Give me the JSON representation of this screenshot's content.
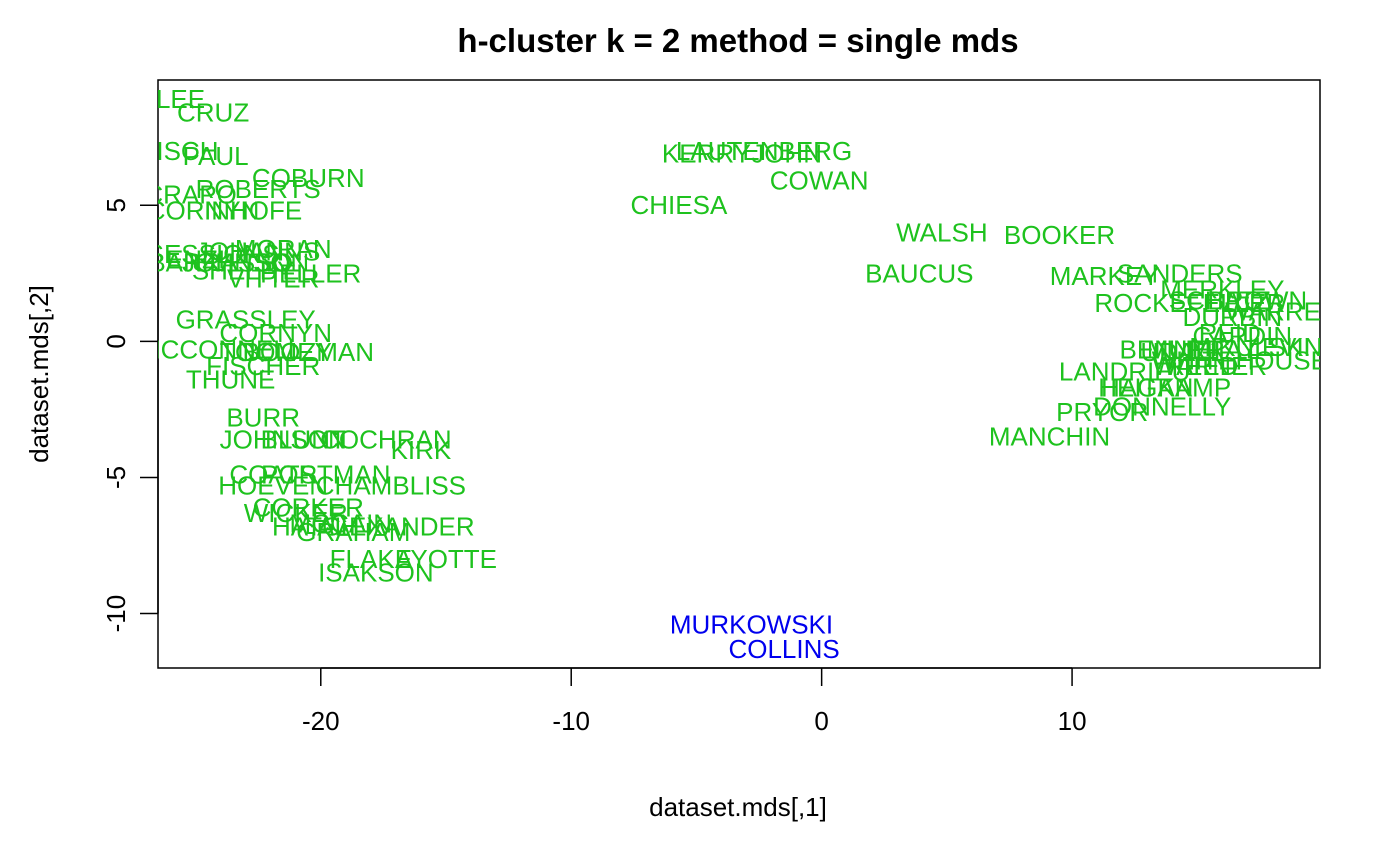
{
  "chart_data": {
    "type": "scatter",
    "title": "h-cluster k = 2 method =  single mds",
    "xlabel": "dataset.mds[,1]",
    "ylabel": "dataset.mds[,2]",
    "xlim": [
      -26.5,
      19.9
    ],
    "ylim": [
      -12.0,
      9.6
    ],
    "xticks": [
      -20,
      -10,
      0,
      10
    ],
    "yticks": [
      -10,
      -5,
      0,
      5
    ],
    "grid": false,
    "legend": "none",
    "cluster_colors": {
      "1": "#1ec21e",
      "2": "#0000ee"
    },
    "series": [
      {
        "cluster": 1,
        "points": [
          {
            "label": "LEE",
            "x": -25.6,
            "y": 8.9
          },
          {
            "label": "CRUZ",
            "x": -24.3,
            "y": 8.4
          },
          {
            "label": "RISCH",
            "x": -25.7,
            "y": 7.0
          },
          {
            "label": "PAUL",
            "x": -24.2,
            "y": 6.8
          },
          {
            "label": "COBURN",
            "x": -20.5,
            "y": 6.0
          },
          {
            "label": "ROBERTS",
            "x": -22.5,
            "y": 5.6
          },
          {
            "label": "CRAPO",
            "x": -25.2,
            "y": 5.4
          },
          {
            "label": "INHOFE",
            "x": -22.7,
            "y": 4.8
          },
          {
            "label": "CORNYN",
            "x": -24.7,
            "y": 4.8
          },
          {
            "label": "MORAN",
            "x": -21.5,
            "y": 3.4
          },
          {
            "label": "JOHANNS",
            "x": -22.5,
            "y": 3.3
          },
          {
            "label": "SESSIONS",
            "x": -24.3,
            "y": 3.2
          },
          {
            "label": "ENZI",
            "x": -25.0,
            "y": 3.0
          },
          {
            "label": "JOHNSON",
            "x": -23.0,
            "y": 2.9
          },
          {
            "label": "BARRASSO",
            "x": -24.0,
            "y": 2.9
          },
          {
            "label": "HELLER",
            "x": -20.4,
            "y": 2.5
          },
          {
            "label": "SHELBY",
            "x": -23.1,
            "y": 2.6
          },
          {
            "label": "VITTER",
            "x": -21.9,
            "y": 2.3
          },
          {
            "label": "GRASSLEY",
            "x": -23.0,
            "y": 0.8
          },
          {
            "label": "CORNYN",
            "x": -21.8,
            "y": 0.3
          },
          {
            "label": "MCCONNELL",
            "x": -24.0,
            "y": -0.3
          },
          {
            "label": "BOOZMAN",
            "x": -20.5,
            "y": -0.4
          },
          {
            "label": "TOOMEY",
            "x": -21.8,
            "y": -0.4
          },
          {
            "label": "FISCHER",
            "x": -22.3,
            "y": -0.9
          },
          {
            "label": "THUNE",
            "x": -23.6,
            "y": -1.4
          },
          {
            "label": "BURR",
            "x": -22.3,
            "y": -2.8
          },
          {
            "label": "BLUNT",
            "x": -20.7,
            "y": -3.6
          },
          {
            "label": "JOHNSON",
            "x": -21.5,
            "y": -3.6
          },
          {
            "label": "COCHRAN",
            "x": -17.4,
            "y": -3.6
          },
          {
            "label": "KIRK",
            "x": -16.0,
            "y": -4.0
          },
          {
            "label": "PORTMAN",
            "x": -19.8,
            "y": -4.9
          },
          {
            "label": "COATS",
            "x": -21.9,
            "y": -4.9
          },
          {
            "label": "HOEVEN",
            "x": -21.9,
            "y": -5.3
          },
          {
            "label": "CHAMBLISS",
            "x": -17.2,
            "y": -5.3
          },
          {
            "label": "WICKER",
            "x": -21.0,
            "y": -6.3
          },
          {
            "label": "CORKER",
            "x": -20.5,
            "y": -6.1
          },
          {
            "label": "ALEXANDER",
            "x": -17.0,
            "y": -6.8
          },
          {
            "label": "HATCH",
            "x": -20.2,
            "y": -6.8
          },
          {
            "label": "MCCAIN",
            "x": -19.2,
            "y": -6.7
          },
          {
            "label": "GRAHAM",
            "x": -18.7,
            "y": -7.0
          },
          {
            "label": "AYOTTE",
            "x": -15.0,
            "y": -8.0
          },
          {
            "label": "FLAKE",
            "x": -18.0,
            "y": -8.0
          },
          {
            "label": "ISAKSON",
            "x": -17.8,
            "y": -8.5
          },
          {
            "label": "LAUTENBERG",
            "x": -2.3,
            "y": 7.0
          },
          {
            "label": "KERRY",
            "x": -4.6,
            "y": 6.9
          },
          {
            "label": "JOHN",
            "x": -1.4,
            "y": 6.9
          },
          {
            "label": "COWAN",
            "x": -0.1,
            "y": 5.9
          },
          {
            "label": "CHIESA",
            "x": -5.7,
            "y": 5.0
          },
          {
            "label": "WALSH",
            "x": 4.8,
            "y": 4.0
          },
          {
            "label": "BOOKER",
            "x": 9.5,
            "y": 3.9
          },
          {
            "label": "BAUCUS",
            "x": 3.9,
            "y": 2.5
          },
          {
            "label": "MARKEY",
            "x": 11.3,
            "y": 2.4
          },
          {
            "label": "SANDERS",
            "x": 14.3,
            "y": 2.5
          },
          {
            "label": "MERKLEY",
            "x": 16.0,
            "y": 1.9
          },
          {
            "label": "ROCKEFELLER",
            "x": 14.7,
            "y": 1.4
          },
          {
            "label": "SCHATZ",
            "x": 15.9,
            "y": 1.5
          },
          {
            "label": "BROWN",
            "x": 17.4,
            "y": 1.5
          },
          {
            "label": "WARREN",
            "x": 18.4,
            "y": 1.1
          },
          {
            "label": "DURBIN",
            "x": 16.4,
            "y": 0.9
          },
          {
            "label": "REID",
            "x": 16.3,
            "y": 0.3
          },
          {
            "label": "CARDIN",
            "x": 16.8,
            "y": 0.2
          },
          {
            "label": "MIKULSKI",
            "x": 17.1,
            "y": -0.2
          },
          {
            "label": "MURRAY",
            "x": 15.2,
            "y": -0.3
          },
          {
            "label": "LEVIN",
            "x": 18.5,
            "y": -0.2
          },
          {
            "label": "BENNET",
            "x": 14.0,
            "y": -0.3
          },
          {
            "label": "REED",
            "x": 15.2,
            "y": -0.9
          },
          {
            "label": "WHITEHOUSE",
            "x": 16.7,
            "y": -0.7
          },
          {
            "label": "UDALL",
            "x": 14.4,
            "y": -0.4
          },
          {
            "label": "LANDRIEU",
            "x": 12.1,
            "y": -1.1
          },
          {
            "label": "WARNER",
            "x": 15.5,
            "y": -0.9
          },
          {
            "label": "HEITKAMP",
            "x": 13.7,
            "y": -1.7
          },
          {
            "label": "HAGAN",
            "x": 13.0,
            "y": -1.7
          },
          {
            "label": "PRYOR",
            "x": 11.2,
            "y": -2.6
          },
          {
            "label": "DONNELLY",
            "x": 13.6,
            "y": -2.4
          },
          {
            "label": "MANCHIN",
            "x": 9.1,
            "y": -3.5
          }
        ]
      },
      {
        "cluster": 2,
        "points": [
          {
            "label": "MURKOWSKI",
            "x": -2.8,
            "y": -10.4
          },
          {
            "label": "COLLINS",
            "x": -1.5,
            "y": -11.3
          }
        ]
      }
    ]
  }
}
